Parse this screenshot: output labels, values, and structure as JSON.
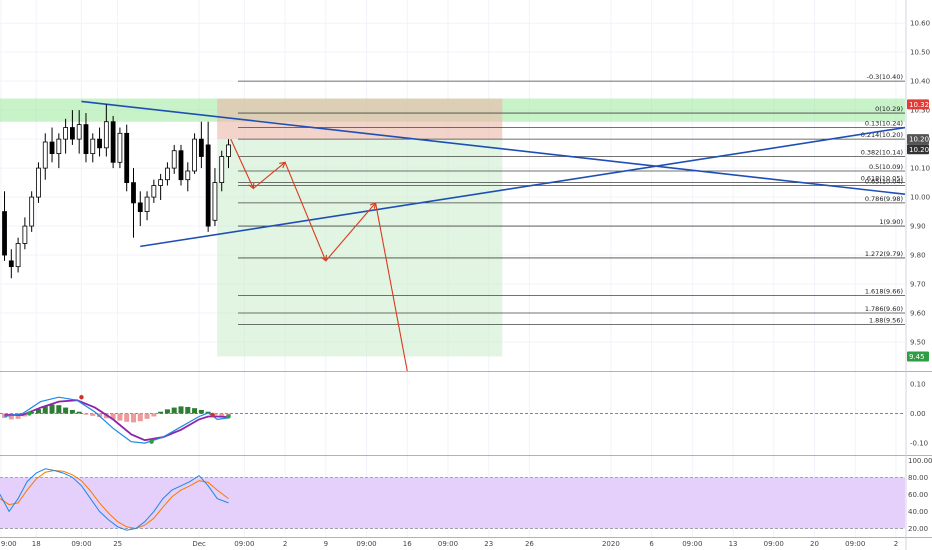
{
  "chart_data": [
    {
      "type": "candlestick",
      "pane": "price",
      "y_axis_ticks": [
        "10.60",
        "10.50",
        "10.40",
        "10.30",
        "10.20",
        "10.10",
        "10.00",
        "9.90",
        "9.80",
        "9.70",
        "9.60",
        "9.50"
      ],
      "ylim": [
        9.4,
        10.68
      ],
      "x_axis_ticks": [
        {
          "label": "9:00",
          "x": 0.2
        },
        {
          "label": "18",
          "x": 8
        },
        {
          "label": "09:00",
          "x": 18
        },
        {
          "label": "25",
          "x": 26
        },
        {
          "label": "Dec",
          "x": 44
        },
        {
          "label": "09:00",
          "x": 54
        },
        {
          "label": "2",
          "x": 63
        },
        {
          "label": "9",
          "x": 72
        },
        {
          "label": "09:00",
          "x": 81
        },
        {
          "label": "16",
          "x": 90
        },
        {
          "label": "09:00",
          "x": 99
        },
        {
          "label": "23",
          "x": 108
        },
        {
          "label": "26",
          "x": 117
        },
        {
          "label": "2020",
          "x": 135
        },
        {
          "label": "6",
          "x": 144
        },
        {
          "label": "09:00",
          "x": 153
        },
        {
          "label": "13",
          "x": 162
        },
        {
          "label": "09:00",
          "x": 171
        },
        {
          "label": "20",
          "x": 180
        },
        {
          "label": "09:00",
          "x": 189
        },
        {
          "label": "2",
          "x": 198
        }
      ],
      "xlim": [
        0,
        200
      ],
      "candles": [
        {
          "x": 1,
          "o": 9.95,
          "h": 10.02,
          "l": 9.78,
          "c": 9.8
        },
        {
          "x": 2.5,
          "o": 9.78,
          "h": 9.82,
          "l": 9.72,
          "c": 9.76
        },
        {
          "x": 4,
          "o": 9.76,
          "h": 9.86,
          "l": 9.74,
          "c": 9.84
        },
        {
          "x": 5.5,
          "o": 9.84,
          "h": 9.93,
          "l": 9.82,
          "c": 9.9
        },
        {
          "x": 7,
          "o": 9.9,
          "h": 10.02,
          "l": 9.88,
          "c": 10.0
        },
        {
          "x": 8.5,
          "o": 10.0,
          "h": 10.12,
          "l": 9.98,
          "c": 10.1
        },
        {
          "x": 10,
          "o": 10.1,
          "h": 10.22,
          "l": 10.06,
          "c": 10.19
        },
        {
          "x": 11.5,
          "o": 10.19,
          "h": 10.24,
          "l": 10.12,
          "c": 10.15
        },
        {
          "x": 13,
          "o": 10.15,
          "h": 10.22,
          "l": 10.1,
          "c": 10.2
        },
        {
          "x": 14.5,
          "o": 10.2,
          "h": 10.27,
          "l": 10.15,
          "c": 10.24
        },
        {
          "x": 16,
          "o": 10.24,
          "h": 10.3,
          "l": 10.18,
          "c": 10.2
        },
        {
          "x": 17.5,
          "o": 10.2,
          "h": 10.3,
          "l": 10.15,
          "c": 10.25
        },
        {
          "x": 19,
          "o": 10.25,
          "h": 10.29,
          "l": 10.12,
          "c": 10.15
        },
        {
          "x": 20.5,
          "o": 10.15,
          "h": 10.22,
          "l": 10.12,
          "c": 10.2
        },
        {
          "x": 22,
          "o": 10.2,
          "h": 10.24,
          "l": 10.14,
          "c": 10.17
        },
        {
          "x": 23.5,
          "o": 10.17,
          "h": 10.32,
          "l": 10.14,
          "c": 10.26
        },
        {
          "x": 25,
          "o": 10.26,
          "h": 10.28,
          "l": 10.1,
          "c": 10.12
        },
        {
          "x": 26.5,
          "o": 10.12,
          "h": 10.24,
          "l": 10.1,
          "c": 10.22
        },
        {
          "x": 28,
          "o": 10.22,
          "h": 10.25,
          "l": 10.02,
          "c": 10.05
        },
        {
          "x": 29.5,
          "o": 10.05,
          "h": 10.1,
          "l": 9.86,
          "c": 9.98
        },
        {
          "x": 31,
          "o": 9.98,
          "h": 10.02,
          "l": 9.9,
          "c": 9.95
        },
        {
          "x": 32.5,
          "o": 9.95,
          "h": 10.02,
          "l": 9.92,
          "c": 10.0
        },
        {
          "x": 34,
          "o": 10.0,
          "h": 10.06,
          "l": 9.98,
          "c": 10.04
        },
        {
          "x": 35.5,
          "o": 10.04,
          "h": 10.08,
          "l": 9.99,
          "c": 10.06
        },
        {
          "x": 37,
          "o": 10.06,
          "h": 10.12,
          "l": 10.04,
          "c": 10.1
        },
        {
          "x": 38.5,
          "o": 10.1,
          "h": 10.18,
          "l": 10.08,
          "c": 10.16
        },
        {
          "x": 40,
          "o": 10.16,
          "h": 10.18,
          "l": 10.04,
          "c": 10.06
        },
        {
          "x": 41.5,
          "o": 10.06,
          "h": 10.12,
          "l": 10.02,
          "c": 10.09
        },
        {
          "x": 43,
          "o": 10.09,
          "h": 10.22,
          "l": 10.08,
          "c": 10.2
        },
        {
          "x": 44.5,
          "o": 10.2,
          "h": 10.26,
          "l": 10.1,
          "c": 10.14
        },
        {
          "x": 46,
          "o": 10.18,
          "h": 10.26,
          "l": 9.88,
          "c": 9.9
        },
        {
          "x": 47.5,
          "o": 9.92,
          "h": 10.1,
          "l": 9.9,
          "c": 10.05
        },
        {
          "x": 49,
          "o": 10.05,
          "h": 10.16,
          "l": 10.02,
          "c": 10.14
        },
        {
          "x": 50.5,
          "o": 10.14,
          "h": 10.2,
          "l": 10.1,
          "c": 10.18
        }
      ],
      "fib_levels": [
        {
          "label": "-0.3(10.40)",
          "value": 10.4
        },
        {
          "label": "0(10.29)",
          "value": 10.29
        },
        {
          "label": "0.13(10.24)",
          "value": 10.24
        },
        {
          "label": "0.214(10.20)",
          "value": 10.2
        },
        {
          "label": "0.382(10.14)",
          "value": 10.14
        },
        {
          "label": "0.5(10.09)",
          "value": 10.09
        },
        {
          "label": "0.618(10.05)",
          "value": 10.05
        },
        {
          "label": "0.65(10.04)",
          "value": 10.04
        },
        {
          "label": "0.786(9.98)",
          "value": 9.98
        },
        {
          "label": "1(9.90)",
          "value": 9.9
        },
        {
          "label": "1.272(9.79)",
          "value": 9.79
        },
        {
          "label": "1.618(9.66)",
          "value": 9.66
        },
        {
          "label": "1.786(9.60)",
          "value": 9.6
        },
        {
          "label": "1.88(9.56)",
          "value": 9.56
        }
      ],
      "price_badges": [
        {
          "label": "10.32",
          "value": 10.32,
          "color": "#e53935"
        },
        {
          "label": "10.20",
          "value": 10.2,
          "color": "#555555"
        },
        {
          "label": "10.20",
          "value": 10.165,
          "color": "#333333"
        },
        {
          "label": "9.45",
          "value": 9.45,
          "color": "#2e9e43"
        }
      ],
      "zones": [
        {
          "kind": "resistance",
          "x0": 0,
          "x1": 200,
          "y0": 10.26,
          "y1": 10.34,
          "color": "#9be89b"
        },
        {
          "kind": "stop",
          "x0": 48,
          "x1": 111,
          "y0": 10.2,
          "y1": 10.34,
          "color": "#e9b7a8"
        },
        {
          "kind": "target",
          "x0": 48,
          "x1": 111,
          "y0": 9.45,
          "y1": 10.2,
          "color": "#cdeecf"
        }
      ],
      "trendlines": [
        {
          "x0": 18,
          "y0": 10.33,
          "x1": 200,
          "y1": 10.01,
          "color": "#1f4fb5"
        },
        {
          "x0": 31,
          "y0": 9.83,
          "x1": 200,
          "y1": 10.24,
          "color": "#1f4fb5"
        }
      ],
      "projection_path": [
        {
          "x": 51,
          "y": 10.2
        },
        {
          "x": 56,
          "y": 10.03
        },
        {
          "x": 63,
          "y": 10.12
        },
        {
          "x": 72,
          "y": 9.78
        },
        {
          "x": 83,
          "y": 9.98
        },
        {
          "x": 90,
          "y": 9.4
        }
      ],
      "colors": {
        "up": "#ffffff",
        "down": "#000000",
        "projection": "#d93a20",
        "fib_line": "#444444"
      }
    },
    {
      "type": "macd",
      "pane": "macd",
      "y_axis_ticks": [
        "0.10",
        "0.00",
        "-0.10"
      ],
      "ylim": [
        -0.14,
        0.14
      ],
      "histogram": [
        {
          "x": 1,
          "v": -0.015
        },
        {
          "x": 2.5,
          "v": -0.02
        },
        {
          "x": 4,
          "v": -0.018
        },
        {
          "x": 5.5,
          "v": -0.01
        },
        {
          "x": 7,
          "v": 0.005
        },
        {
          "x": 8.5,
          "v": 0.015
        },
        {
          "x": 10,
          "v": 0.025
        },
        {
          "x": 11.5,
          "v": 0.03
        },
        {
          "x": 13,
          "v": 0.028
        },
        {
          "x": 14.5,
          "v": 0.02
        },
        {
          "x": 16,
          "v": 0.012
        },
        {
          "x": 17.5,
          "v": 0.006
        },
        {
          "x": 19,
          "v": -0.004
        },
        {
          "x": 20.5,
          "v": -0.008
        },
        {
          "x": 22,
          "v": -0.012
        },
        {
          "x": 23.5,
          "v": -0.016
        },
        {
          "x": 25,
          "v": -0.02
        },
        {
          "x": 26.5,
          "v": -0.024
        },
        {
          "x": 28,
          "v": -0.028
        },
        {
          "x": 29.5,
          "v": -0.03
        },
        {
          "x": 31,
          "v": -0.026
        },
        {
          "x": 32.5,
          "v": -0.018
        },
        {
          "x": 34,
          "v": -0.01
        },
        {
          "x": 35.5,
          "v": 0.006
        },
        {
          "x": 37,
          "v": 0.014
        },
        {
          "x": 38.5,
          "v": 0.02
        },
        {
          "x": 40,
          "v": 0.024
        },
        {
          "x": 41.5,
          "v": 0.022
        },
        {
          "x": 43,
          "v": 0.018
        },
        {
          "x": 44.5,
          "v": 0.012
        },
        {
          "x": 46,
          "v": 0.006
        },
        {
          "x": 47.5,
          "v": -0.006
        },
        {
          "x": 49,
          "v": -0.012
        },
        {
          "x": 50.5,
          "v": -0.008
        }
      ],
      "macd_line": [
        {
          "x": 1,
          "v": -0.01
        },
        {
          "x": 5,
          "v": 0.0
        },
        {
          "x": 9,
          "v": 0.04
        },
        {
          "x": 13,
          "v": 0.055
        },
        {
          "x": 17,
          "v": 0.045
        },
        {
          "x": 21,
          "v": 0.005
        },
        {
          "x": 25,
          "v": -0.05
        },
        {
          "x": 29,
          "v": -0.095
        },
        {
          "x": 32,
          "v": -0.1
        },
        {
          "x": 36,
          "v": -0.08
        },
        {
          "x": 40,
          "v": -0.045
        },
        {
          "x": 44,
          "v": -0.01
        },
        {
          "x": 46,
          "v": 0.002
        },
        {
          "x": 48,
          "v": -0.02
        },
        {
          "x": 50.5,
          "v": -0.015
        }
      ],
      "signal_line": [
        {
          "x": 1,
          "v": -0.005
        },
        {
          "x": 5,
          "v": -0.005
        },
        {
          "x": 9,
          "v": 0.02
        },
        {
          "x": 13,
          "v": 0.04
        },
        {
          "x": 17,
          "v": 0.045
        },
        {
          "x": 21,
          "v": 0.02
        },
        {
          "x": 25,
          "v": -0.02
        },
        {
          "x": 29,
          "v": -0.07
        },
        {
          "x": 32,
          "v": -0.09
        },
        {
          "x": 36,
          "v": -0.08
        },
        {
          "x": 40,
          "v": -0.055
        },
        {
          "x": 44,
          "v": -0.02
        },
        {
          "x": 46,
          "v": -0.01
        },
        {
          "x": 48,
          "v": -0.01
        },
        {
          "x": 50.5,
          "v": -0.012
        }
      ],
      "cross_dots": [
        {
          "x": 6.5,
          "v": 0.0,
          "color": "#2e9e43"
        },
        {
          "x": 18,
          "v": 0.055,
          "color": "#d32f2f"
        },
        {
          "x": 33.5,
          "v": -0.095,
          "color": "#2e9e43"
        },
        {
          "x": 47,
          "v": -0.005,
          "color": "#d32f2f"
        },
        {
          "x": 50.5,
          "v": -0.01,
          "color": "#2e9e43"
        }
      ],
      "colors": {
        "macd": "#1e88e5",
        "signal": "#8e24aa",
        "hist_up": "#2e7d32",
        "hist_down": "#ef9a9a",
        "zero": "#d32f2f"
      }
    },
    {
      "type": "stochastic",
      "pane": "stoch",
      "y_axis_ticks": [
        "100.00",
        "80.00",
        "60.00",
        "40.00",
        "20.00"
      ],
      "ylim": [
        10,
        105
      ],
      "band": [
        20,
        80
      ],
      "k_line": [
        {
          "x": 0,
          "v": 60
        },
        {
          "x": 2,
          "v": 40
        },
        {
          "x": 4,
          "v": 55
        },
        {
          "x": 6,
          "v": 75
        },
        {
          "x": 8,
          "v": 85
        },
        {
          "x": 10,
          "v": 90
        },
        {
          "x": 12,
          "v": 88
        },
        {
          "x": 14,
          "v": 85
        },
        {
          "x": 16,
          "v": 80
        },
        {
          "x": 18,
          "v": 70
        },
        {
          "x": 20,
          "v": 55
        },
        {
          "x": 22,
          "v": 40
        },
        {
          "x": 24,
          "v": 30
        },
        {
          "x": 26,
          "v": 22
        },
        {
          "x": 28,
          "v": 18
        },
        {
          "x": 30,
          "v": 20
        },
        {
          "x": 32,
          "v": 28
        },
        {
          "x": 34,
          "v": 40
        },
        {
          "x": 36,
          "v": 55
        },
        {
          "x": 38,
          "v": 65
        },
        {
          "x": 40,
          "v": 70
        },
        {
          "x": 42,
          "v": 75
        },
        {
          "x": 44,
          "v": 82
        },
        {
          "x": 46,
          "v": 70
        },
        {
          "x": 48,
          "v": 55
        },
        {
          "x": 50.5,
          "v": 50
        }
      ],
      "d_line": [
        {
          "x": 0,
          "v": 55
        },
        {
          "x": 2,
          "v": 48
        },
        {
          "x": 4,
          "v": 50
        },
        {
          "x": 6,
          "v": 65
        },
        {
          "x": 8,
          "v": 78
        },
        {
          "x": 10,
          "v": 86
        },
        {
          "x": 12,
          "v": 88
        },
        {
          "x": 14,
          "v": 87
        },
        {
          "x": 16,
          "v": 83
        },
        {
          "x": 18,
          "v": 76
        },
        {
          "x": 20,
          "v": 64
        },
        {
          "x": 22,
          "v": 50
        },
        {
          "x": 24,
          "v": 38
        },
        {
          "x": 26,
          "v": 28
        },
        {
          "x": 28,
          "v": 22
        },
        {
          "x": 30,
          "v": 20
        },
        {
          "x": 32,
          "v": 24
        },
        {
          "x": 34,
          "v": 32
        },
        {
          "x": 36,
          "v": 45
        },
        {
          "x": 38,
          "v": 57
        },
        {
          "x": 40,
          "v": 65
        },
        {
          "x": 42,
          "v": 70
        },
        {
          "x": 44,
          "v": 76
        },
        {
          "x": 46,
          "v": 74
        },
        {
          "x": 48,
          "v": 65
        },
        {
          "x": 50.5,
          "v": 55
        }
      ],
      "colors": {
        "k": "#1e88e5",
        "d": "#f57c00",
        "band": "#e4d0fb"
      }
    }
  ]
}
